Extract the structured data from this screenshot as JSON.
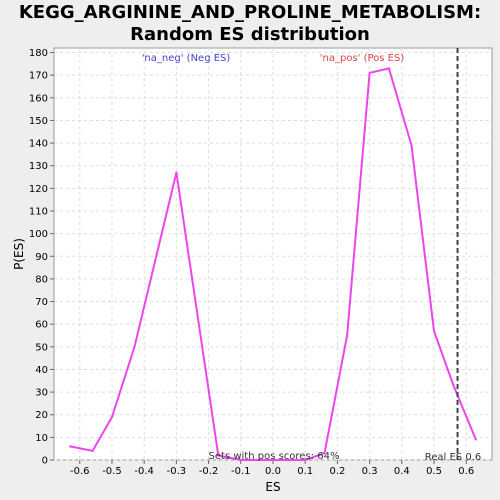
{
  "chart_data": {
    "type": "line",
    "title_lines": [
      "KEGG_ARGININE_AND_PROLINE_METABOLISM:",
      "Random ES distribution"
    ],
    "xlabel": "ES",
    "ylabel": "P(ES)",
    "xlim": [
      -0.68,
      0.68
    ],
    "ylim": [
      0,
      182
    ],
    "xticks": [
      "-0.6",
      "-0.5",
      "-0.4",
      "-0.3",
      "-0.2",
      "-0.1",
      "0.0",
      "0.1",
      "0.2",
      "0.3",
      "0.4",
      "0.5",
      "0.6"
    ],
    "yticks": [
      "0",
      "10",
      "20",
      "30",
      "40",
      "50",
      "60",
      "70",
      "80",
      "90",
      "100",
      "110",
      "120",
      "130",
      "140",
      "150",
      "160",
      "170",
      "180"
    ],
    "grid": true,
    "series": [
      {
        "color": "#ee44ee",
        "x": [
          -0.63,
          -0.56,
          -0.5,
          -0.43,
          -0.3,
          -0.17,
          -0.1,
          -0.03,
          0.03,
          0.1,
          0.16,
          0.23,
          0.3,
          0.36,
          0.43,
          0.5,
          0.56,
          0.63
        ],
        "y": [
          6,
          4,
          19,
          50,
          127,
          2,
          0,
          0,
          0,
          0,
          3,
          55,
          171,
          173,
          139,
          57,
          33,
          9
        ]
      }
    ],
    "real_es": {
      "x": 0.573,
      "label": "Real ES 0.6",
      "color": "#444444"
    },
    "annotations": {
      "neg": {
        "text": "'na_neg' (Neg ES)",
        "color": "#4444cc"
      },
      "pos": {
        "text": "'na_pos' (Pos ES)",
        "color": "#dd4444"
      },
      "sets": {
        "text": "Sets with pos scores: 64%",
        "color": "#333333"
      }
    }
  }
}
